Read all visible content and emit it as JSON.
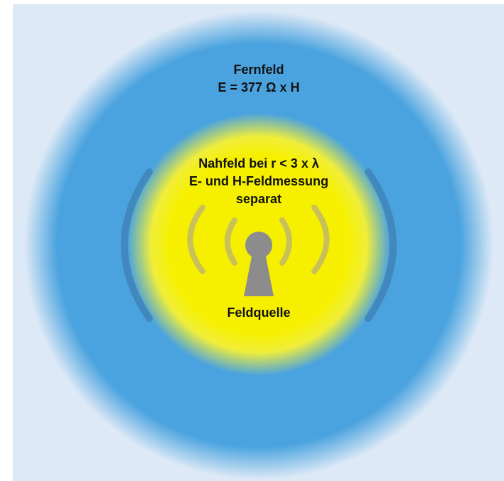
{
  "far_field": {
    "title": "Fernfeld",
    "equation": "E = 377 Ω x H"
  },
  "near_field": {
    "line1": "Nahfeld bei r < 3 x λ",
    "line2": "E- und H-Feldmessung",
    "line3": "separat"
  },
  "source": {
    "label": "Feldquelle",
    "icon": "antenna-icon"
  },
  "colors": {
    "background": "#dde9f6",
    "far_field": "#4aa3df",
    "near_field": "#f6f000",
    "antenna": "#8c8c8c",
    "outer_waves": "#3f84b8",
    "inner_waves": "#c8c15a"
  }
}
